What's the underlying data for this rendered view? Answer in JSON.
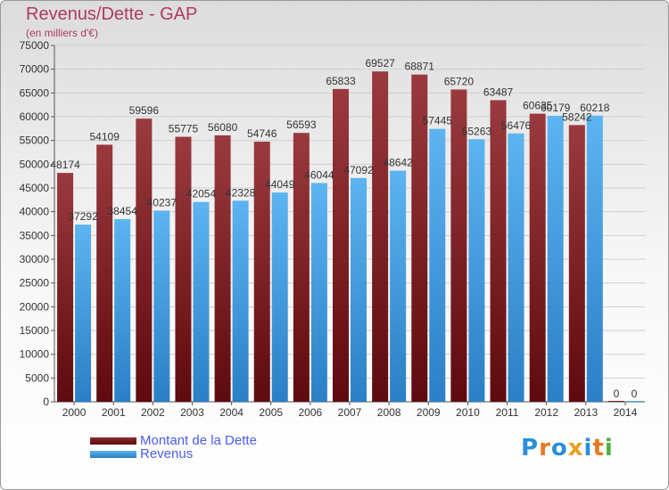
{
  "title": "Revenus/Dette - GAP",
  "subtitle": "(en milliers d'€)",
  "legend": [
    {
      "label": "Montant de la Dette",
      "color": "#7a1e24"
    },
    {
      "label": "Revenus",
      "color": "#4aa3e8"
    }
  ],
  "logo": {
    "text": "Proxiti",
    "colors": [
      "#2a8fd8",
      "#e87820",
      "#2a8fd8",
      "#e8a020",
      "#2a8fd8",
      "#e87820",
      "#4cb040"
    ]
  },
  "chart_data": {
    "type": "bar",
    "categories": [
      "2000",
      "2001",
      "2002",
      "2003",
      "2004",
      "2005",
      "2006",
      "2007",
      "2008",
      "2009",
      "2010",
      "2011",
      "2012",
      "2013",
      "2014"
    ],
    "series": [
      {
        "name": "Montant de la Dette",
        "values": [
          48174,
          54109,
          59596,
          55775,
          56080,
          54746,
          56593,
          65833,
          69527,
          68871,
          65720,
          63487,
          60635,
          58242,
          0
        ],
        "color": "#7a1e24"
      },
      {
        "name": "Revenus",
        "values": [
          37292,
          38454,
          40237,
          42054,
          42328,
          44049,
          46044,
          47092,
          48642,
          57445,
          55263,
          56476,
          60179,
          60218,
          0
        ],
        "color": "#4aa3e8"
      }
    ],
    "ylim": [
      0,
      75000
    ],
    "yticks": [
      0,
      5000,
      10000,
      15000,
      20000,
      25000,
      30000,
      35000,
      40000,
      45000,
      50000,
      55000,
      60000,
      65000,
      70000,
      75000
    ],
    "xlabel": "",
    "ylabel": "",
    "grid": true,
    "legend_position": "bottom-left"
  }
}
